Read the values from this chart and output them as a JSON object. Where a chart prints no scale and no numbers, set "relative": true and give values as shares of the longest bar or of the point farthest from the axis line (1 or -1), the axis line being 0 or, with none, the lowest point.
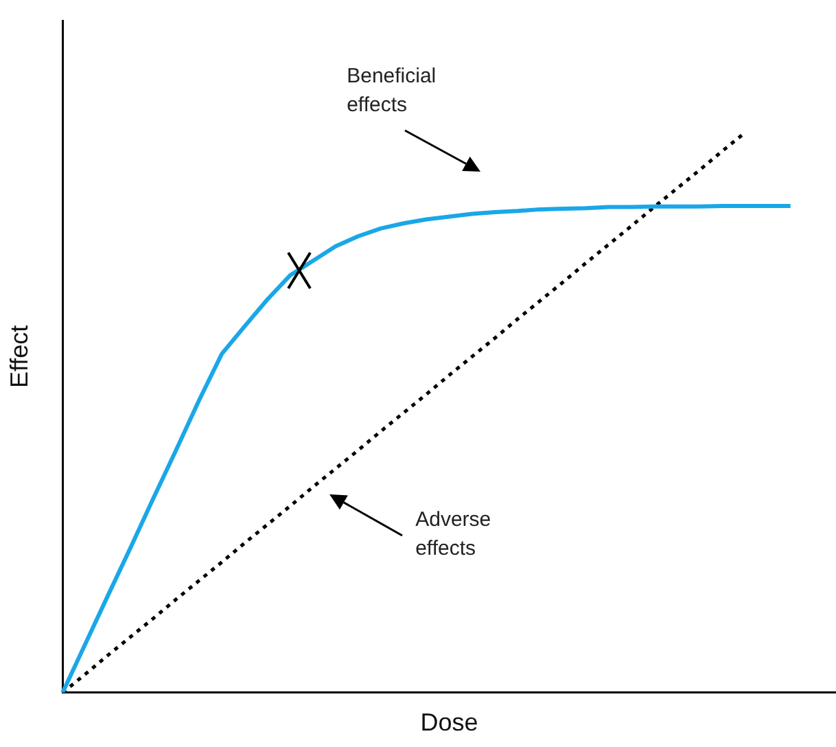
{
  "chart_data": {
    "type": "line",
    "relative": true,
    "xlabel": "Dose",
    "ylabel": "Effect",
    "legend": false,
    "grid": false,
    "tick_labels": false,
    "categories": [
      null,
      null,
      null,
      null,
      null,
      null,
      null,
      null,
      null,
      null,
      null,
      null,
      null,
      null,
      null,
      null,
      null,
      null,
      null,
      null,
      null,
      null,
      null,
      null,
      null,
      null,
      null,
      null,
      null,
      null,
      null,
      null,
      null,
      null,
      null
    ],
    "series": [
      {
        "color": "#1aa7e8",
        "line_style": "solid",
        "marker": "none",
        "values": [
          0,
          0.087,
          0.174,
          0.26,
          0.348,
          0.434,
          0.522,
          0.605,
          0.654,
          0.702,
          0.745,
          0.771,
          0.797,
          0.815,
          0.829,
          0.838,
          0.845,
          0.85,
          0.855,
          0.858,
          0.86,
          0.863,
          0.864,
          0.865,
          0.867,
          0.867,
          0.868,
          0.868,
          0.868,
          0.869,
          0.869,
          0.869,
          0.869,
          null,
          null
        ]
      },
      {
        "color": "#000000",
        "line_style": "dotted",
        "marker": "none",
        "values": [
          0,
          0.033,
          0.067,
          0.1,
          0.133,
          0.167,
          0.2,
          0.233,
          0.267,
          0.3,
          0.333,
          0.367,
          0.4,
          0.433,
          0.467,
          0.5,
          0.533,
          0.567,
          0.6,
          0.633,
          0.667,
          0.7,
          0.733,
          0.767,
          0.8,
          0.833,
          0.867,
          0.9,
          0.933,
          0.967,
          1,
          null,
          null,
          null,
          null
        ]
      }
    ],
    "annotations": [
      "Beneficial\neffects",
      "Adverse\neffects"
    ]
  }
}
